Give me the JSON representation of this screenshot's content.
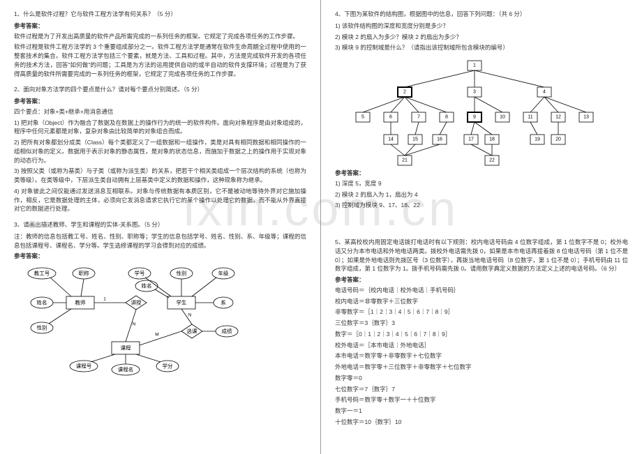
{
  "watermark": "ixin.com.cn",
  "left": {
    "q1": {
      "title": "1、什么是软件过程？它与软件工程方法学有何关系？（5 分）",
      "ans_label": "参考答案：",
      "p1": "软件过程是为了开发出高质量的软件产品所需完成的一系列任务的框架。它规定了完成各项任务的工作步骤。",
      "p2": "软件过程是软件工程方法学的 3 个重要组成部分之一。软件工程方法学是通常在软件生命周期全过程中使用的一整套技术的集合。软件工程方法学包括三个要素，就是方法、工具和过程。其中，方法是完成软件开发的各项任务的技术方法，回答\"如何做\"的问题；工具是为方法的运用提供自动的或半自动的软件支撑环境；过程是为了获得高质量的软件所需要完成的一系列任务的框架，它规定了完成各项任务的工作步骤。"
    },
    "q2": {
      "title": "2、面向对象方法学的四个要点是什么？请对每个要点分别简述。（5 分）",
      "ans_label": "参考答案：",
      "p0": "四个要点：对象+类+继承+用消息通信",
      "p1": "1) 把对象（Object）作为融合了数据及在数据上的操作行为的统一的软件构件。面向对象程序是由对象组成的，程序中任何元素都是对象，复杂对象由比较简单的对象组合而成。",
      "p2": "2) 把所有对象都划分成类（Class）每个类都定义了一组数据和一组操作，类是对具有相同数据和相同操作的一组相似对象的定义。数据用于表示对象的静态属性，是对象的状态信息，而施加于数据之上的操作用于实现对象的动态行为。",
      "p3": "3) 按照父类（或称为基类）与子类（或称为派生类）的关系，把若干个相关类组成一个层次结构的系统（也称为类等级）。在类等级中，下层派生类自动拥有上层基类中定义的数据和操作，这种现象称为继承。",
      "p4": "4) 对象彼此之间仅能通过发送消息互相联系。对象与传统数据有本质区别，它不是被动地等待外界对它施加操作，相反，它是数据处理的主体，必须向它发消息请求它执行它的某个操作以处理它的数据，而不能从外界直接对它的数据进行处理。"
    },
    "q3": {
      "title": "3、请画出描述教师、学生和课程的实体-关系图。（5 分）",
      "desc": "注：教师的信息包括教工号、姓名、性别、职称等；学生的信息包括学号、姓名、性别、系、年级等；课程的信息包括课程号、课程名、学分等。学生选修课程的学习会得到对应的成绩。",
      "ans_label": "参考答案：",
      "entities": {
        "teacher": "教师",
        "student": "学生",
        "course": "课程"
      },
      "attrs": {
        "tid": "教工号",
        "tname": "姓名",
        "title": "职称",
        "tsex": "性别",
        "sid": "学号",
        "sname": "姓名",
        "ssex": "性别",
        "grade": "年级",
        "dept": "系",
        "cid": "课程号",
        "cname": "课程名",
        "credit": "学分",
        "score": "成绩"
      },
      "rels": {
        "teach": "讲授",
        "select": "选课"
      },
      "card": {
        "one": "1",
        "many_n": "N",
        "many_m": "M"
      }
    }
  },
  "right": {
    "q4": {
      "title": "4、下图为某软件的结构图，根据图中的信息，回答下列问题：（共 6 分）",
      "sub1": "1) 该软件结构图的深度和宽度分别是多少？",
      "sub2": "2) 模块 2 的扇入为多少？模块 2 的扇出为多少？",
      "sub3": "3) 模块 9 的控制域是什么？（请指出该控制域所包含模块的编号）",
      "ans_label": "参考答案：",
      "a1": "1) 深度 5，宽度 9",
      "a2": "2) 模块 2 的扇入为 1，扇出为 4",
      "a3": "3) 控制域为模块 9、17、18、22",
      "nodes": [
        "1",
        "2",
        "3",
        "4",
        "5",
        "6",
        "7",
        "8",
        "9",
        "10",
        "11",
        "12",
        "13",
        "14",
        "15",
        "16",
        "17",
        "18",
        "19",
        "20",
        "21",
        "22"
      ],
      "highlight": [
        "2",
        "9"
      ]
    },
    "q5": {
      "title": "5、某高校校内用固定电话拨打电话时有以下规则：校内电话号码由 4 位数字组成，第 1 位数字不是 0；校外电话又分为本市电话和外地电话两类。拨校外电话需先拨 0，如果是本市电话再接着拨 8 位电话号码（第 1 位不是 0）；如果是外地电话则先拨区号（3 位数字），再拨当地电话号码（8 位数字，第 1 位不是 0）；手机号码由 11 位数字组成，第 1 位数字为 1。拨手机号码需先拨 0。请用数字典定义数据的方法定义上述的电话号码。（6 分）",
      "ans_label": "参考答案：",
      "lines": [
        "电话号码＝｛校内电话｜校外电话｜手机号码｝",
        "校内电话＝非零数字＋三位数字",
        "非零数字＝［1｜2｜3｜4｜5｜6｜7｜8｜9］",
        "三位数字＝3｛数字｝3",
        "数字＝［0｜1｜2｜3｜4｜5｜6｜7｜8｜9］",
        "校外电话＝［本市电话｜外地电话］",
        "本市电话＝数字零＋非零数字＋七位数字",
        "外地电话＝数字零＋三位数字＋非零数字＋七位数字",
        "数字零＝0",
        "七位数字＝7｛数字｝7",
        "手机号码＝数字零＋数字一＋十位数字",
        "数字一＝1",
        "十位数字＝10｛数字｝10"
      ]
    }
  }
}
